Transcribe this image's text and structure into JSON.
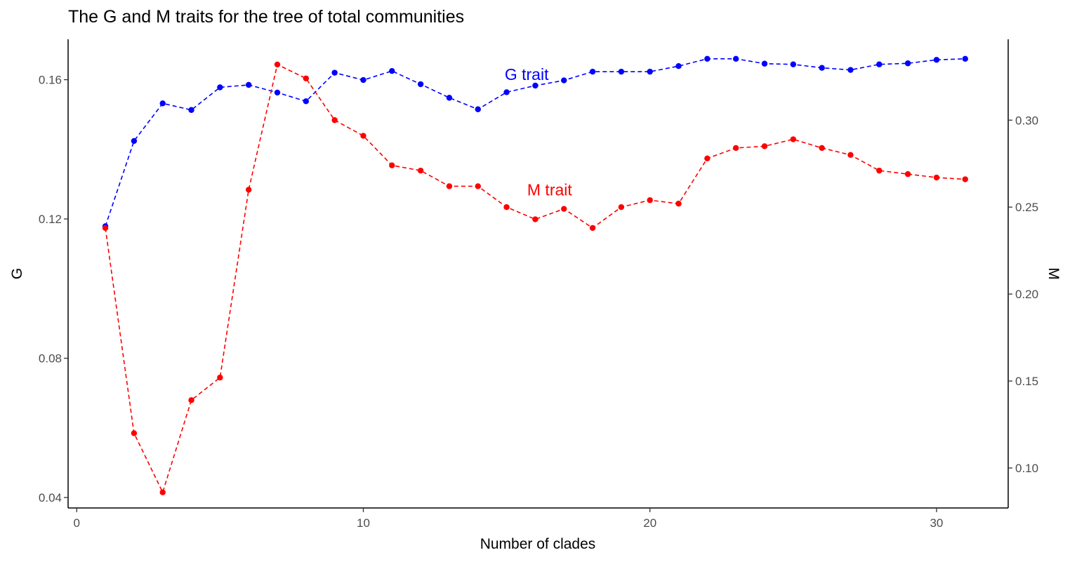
{
  "chart_data": {
    "type": "line",
    "title": "The G and M traits for the tree of total communities",
    "xlabel": "Number of clades",
    "ylabel_left": "G",
    "ylabel_right": "M",
    "xlim": [
      -0.3,
      32.5
    ],
    "ylim_left": [
      0.037,
      0.1716
    ],
    "ylim_right": [
      0.077,
      0.3465
    ],
    "x_ticks": [
      0,
      10,
      20,
      30
    ],
    "y_left_ticks": [
      0.04,
      0.08,
      0.12,
      0.16
    ],
    "y_left_tick_labels": [
      "0.04",
      "0.08",
      "0.12",
      "0.16"
    ],
    "y_right_ticks": [
      0.1,
      0.15,
      0.2,
      0.25,
      0.3
    ],
    "y_right_tick_labels": [
      "0.10",
      "0.15",
      "0.20",
      "0.25",
      "0.30"
    ],
    "x": [
      1,
      2,
      3,
      4,
      5,
      6,
      7,
      8,
      9,
      10,
      11,
      12,
      13,
      14,
      15,
      16,
      17,
      18,
      19,
      20,
      21,
      22,
      23,
      24,
      25,
      26,
      27,
      28,
      29,
      30,
      31
    ],
    "series": [
      {
        "name": "G trait",
        "axis": "left",
        "color": "#0000ff",
        "values": [
          0.1179,
          0.1424,
          0.1532,
          0.1513,
          0.1578,
          0.1585,
          0.1563,
          0.1538,
          0.162,
          0.1599,
          0.1625,
          0.1587,
          0.1548,
          0.1515,
          0.1564,
          0.1583,
          0.1598,
          0.1623,
          0.1623,
          0.1623,
          0.1639,
          0.166,
          0.166,
          0.1646,
          0.1644,
          0.1634,
          0.1628,
          0.1644,
          0.1647,
          0.1657,
          0.166
        ]
      },
      {
        "name": "M trait",
        "axis": "right",
        "color": "#ff0000",
        "values": [
          0.238,
          0.12,
          0.086,
          0.139,
          0.152,
          0.26,
          0.332,
          0.324,
          0.3,
          0.291,
          0.274,
          0.271,
          0.262,
          0.262,
          0.25,
          0.243,
          0.249,
          0.238,
          0.25,
          0.254,
          0.252,
          0.278,
          0.284,
          0.285,
          0.289,
          0.284,
          0.28,
          0.271,
          0.269,
          0.267,
          0.266
        ]
      }
    ],
    "annotations": [
      {
        "text": "G trait",
        "x": 15.7,
        "y": 0.1615,
        "axis": "left",
        "color": "#0000ff"
      },
      {
        "text": "M trait",
        "x": 16.5,
        "y": 0.26,
        "axis": "right",
        "color": "#ff0000"
      }
    ],
    "grid": false,
    "legend": "none"
  }
}
